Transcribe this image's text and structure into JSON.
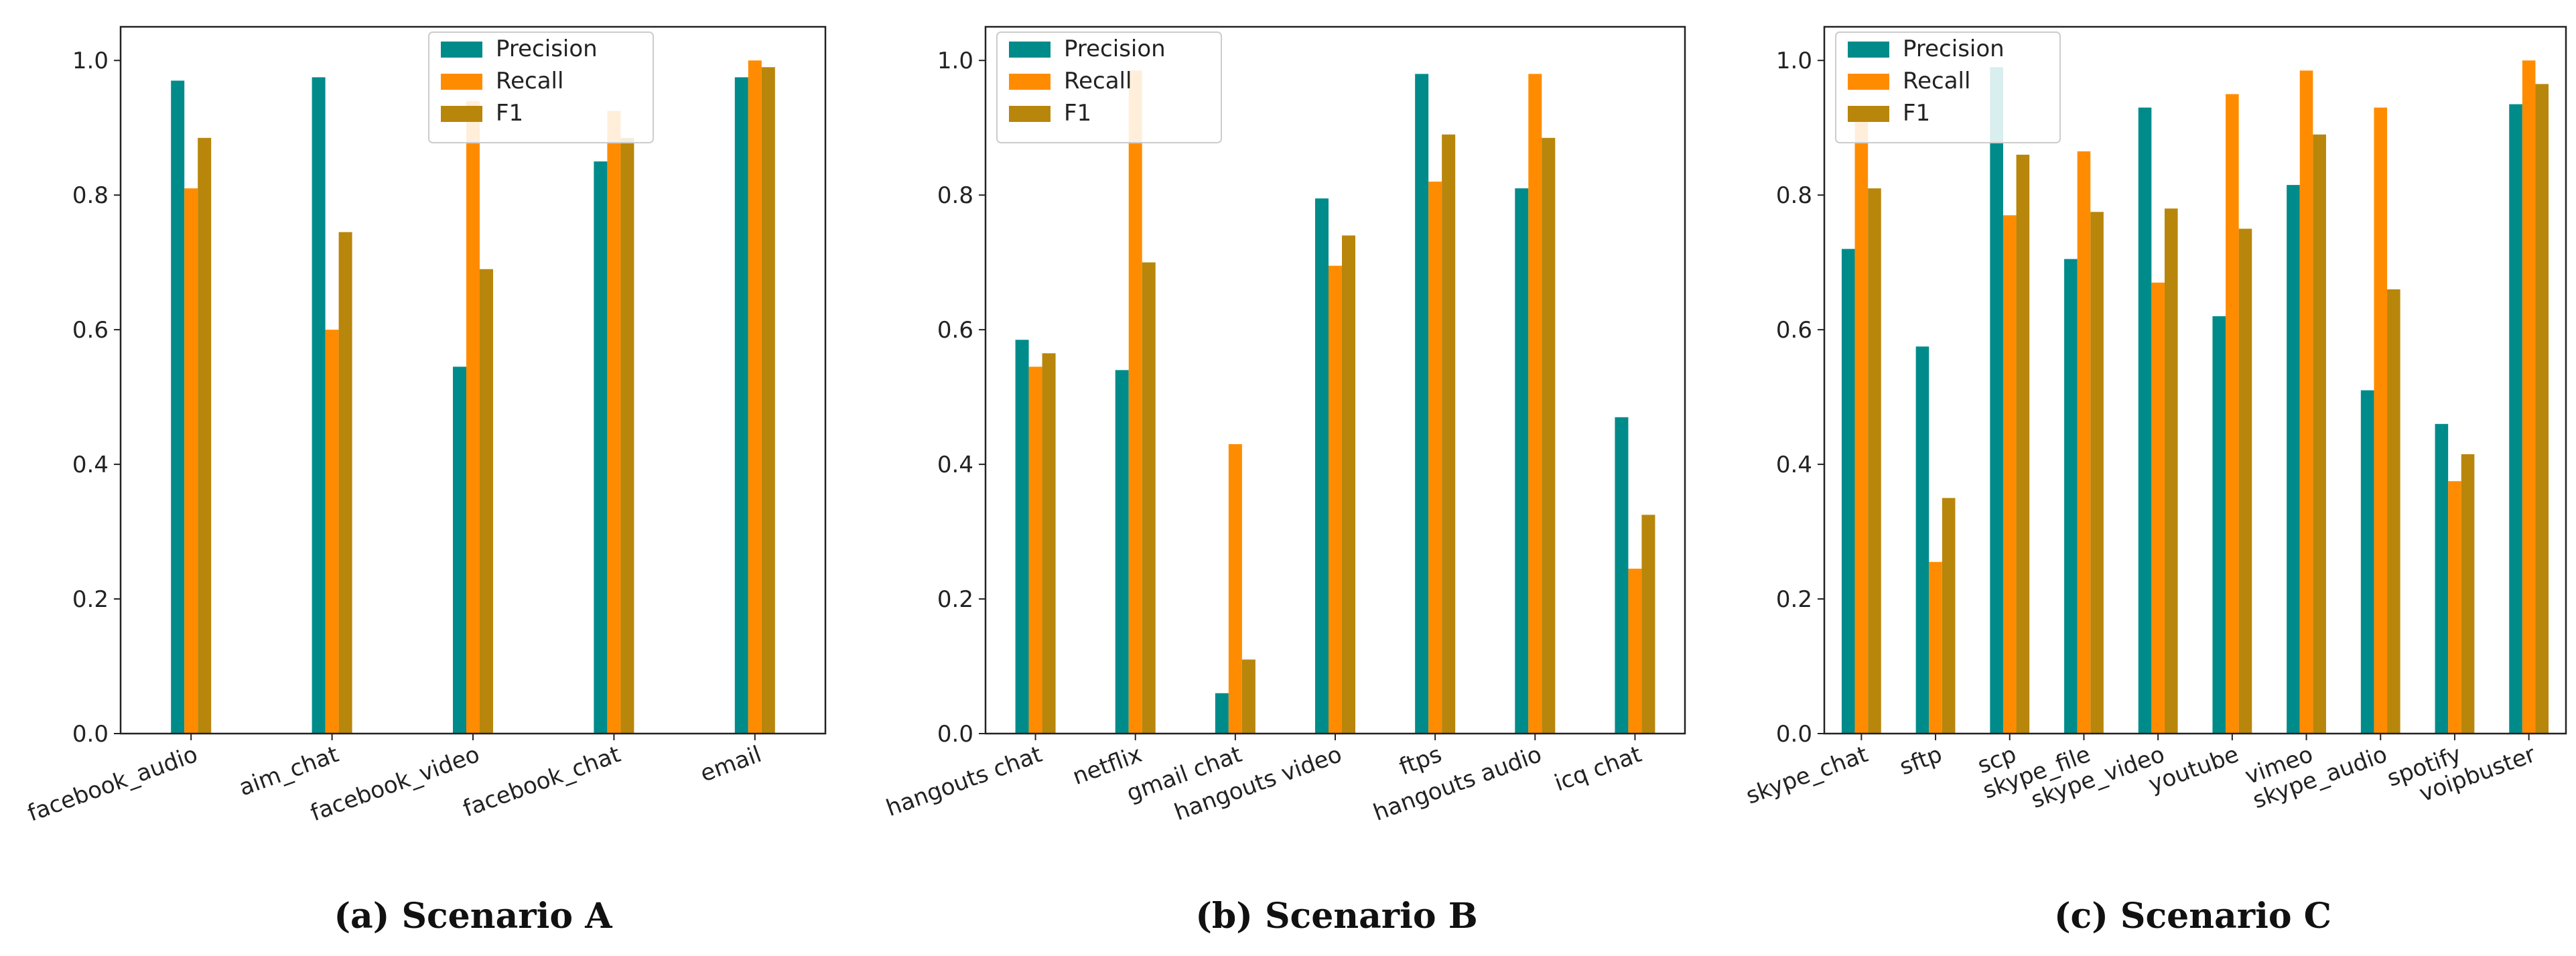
{
  "colors": {
    "precision": "#008b8b",
    "recall": "#ff8c00",
    "f1": "#b8860b"
  },
  "chart_data": [
    {
      "type": "bar",
      "caption": "(a) Scenario A",
      "ylim": [
        0,
        1.05
      ],
      "yticks": [
        "0.0",
        "0.2",
        "0.4",
        "0.6",
        "0.8",
        "1.0"
      ],
      "legend": [
        "Precision",
        "Recall",
        "F1"
      ],
      "legend_loc": "top-center",
      "categories": [
        "facebook_audio",
        "aim_chat",
        "facebook_video",
        "facebook_chat",
        "email"
      ],
      "series": [
        {
          "name": "Precision",
          "values": [
            0.97,
            0.975,
            0.545,
            0.85,
            0.975
          ]
        },
        {
          "name": "Recall",
          "values": [
            0.81,
            0.6,
            0.94,
            0.925,
            1.0
          ]
        },
        {
          "name": "F1",
          "values": [
            0.885,
            0.745,
            0.69,
            0.885,
            0.99
          ]
        }
      ]
    },
    {
      "type": "bar",
      "caption": "(b) Scenario B",
      "ylim": [
        0,
        1.05
      ],
      "yticks": [
        "0.0",
        "0.2",
        "0.4",
        "0.6",
        "0.8",
        "1.0"
      ],
      "legend": [
        "Precision",
        "Recall",
        "F1"
      ],
      "legend_loc": "top-left",
      "categories": [
        "hangouts chat",
        "netflix",
        "gmail chat",
        "hangouts video",
        "ftps",
        "hangouts audio",
        "icq chat"
      ],
      "series": [
        {
          "name": "Precision",
          "values": [
            0.585,
            0.54,
            0.06,
            0.795,
            0.98,
            0.81,
            0.47
          ]
        },
        {
          "name": "Recall",
          "values": [
            0.545,
            0.985,
            0.43,
            0.695,
            0.82,
            0.98,
            0.245
          ]
        },
        {
          "name": "F1",
          "values": [
            0.565,
            0.7,
            0.11,
            0.74,
            0.89,
            0.885,
            0.325
          ]
        }
      ]
    },
    {
      "type": "bar",
      "caption": "(c) Scenario C",
      "ylim": [
        0,
        1.05
      ],
      "yticks": [
        "0.0",
        "0.2",
        "0.4",
        "0.6",
        "0.8",
        "1.0"
      ],
      "legend": [
        "Precision",
        "Recall",
        "F1"
      ],
      "legend_loc": "top-left",
      "categories": [
        "skype_chat",
        "sftp",
        "scp",
        "skype_file",
        "skype_video",
        "youtube",
        "vimeo",
        "skype_audio",
        "spotify",
        "voipbuster"
      ],
      "series": [
        {
          "name": "Precision",
          "values": [
            0.72,
            0.575,
            0.99,
            0.705,
            0.93,
            0.62,
            0.815,
            0.51,
            0.46,
            0.935
          ]
        },
        {
          "name": "Recall",
          "values": [
            0.93,
            0.255,
            0.77,
            0.865,
            0.67,
            0.95,
            0.985,
            0.93,
            0.375,
            1.0
          ]
        },
        {
          "name": "F1",
          "values": [
            0.81,
            0.35,
            0.86,
            0.775,
            0.78,
            0.75,
            0.89,
            0.66,
            0.415,
            0.965
          ]
        }
      ]
    }
  ]
}
